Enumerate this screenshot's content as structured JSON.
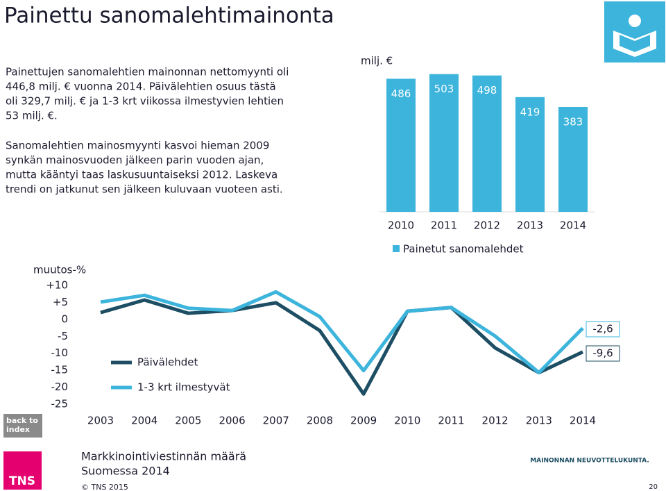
{
  "title": "Painettu sanomalehtimainonta",
  "paragraphs": [
    [
      "Painettujen sanomalehtien mainonnan nettomyynti oli",
      "446,8 milj. € vuonna 2014. Päivälehtien osuus tästä",
      "oli 329,7 milj. € ja 1-3 krt viikossa ilmestyvien lehtien",
      "53 milj. €."
    ],
    [
      "Sanomalehtien mainosmyynti kasvoi hieman 2009",
      "synkän mainosvuoden jälkeen parin vuoden ajan,",
      "mutta kääntyi taas laskusuuntaiseksi 2012. Laskeva",
      "trendi on jatkunut sen jälkeen kuluvaan vuoteen asti."
    ]
  ],
  "footer": {
    "back": [
      "back to",
      "index"
    ],
    "logo": "TNS",
    "report": [
      "Markkinointiviestinnän määrä",
      "Suomessa 2014"
    ],
    "copyright": "© TNS 2015",
    "partner": "MAINONNAN NEUVOTTELUKUNTA.",
    "page": "20"
  },
  "chart_data": [
    {
      "type": "bar",
      "y_label": "milj. €",
      "categories": [
        "2010",
        "2011",
        "2012",
        "2013",
        "2014"
      ],
      "series": [
        {
          "name": "Painetut sanomalehdet",
          "color": "#3cb4dc",
          "values": [
            486,
            503,
            498,
            419,
            383
          ]
        }
      ],
      "ylim": [
        0,
        520
      ],
      "legend": "bottom-left"
    },
    {
      "type": "line",
      "y_label": "muutos-%",
      "categories": [
        "2003",
        "2004",
        "2005",
        "2006",
        "2007",
        "2008",
        "2009",
        "2010",
        "2011",
        "2012",
        "2013",
        "2014"
      ],
      "series": [
        {
          "name": "Päivälehdet",
          "color": "#1d4e63",
          "values": [
            2,
            5.7,
            1.8,
            2.6,
            4.9,
            -3.3,
            -22,
            2.4,
            3.5,
            -8.4,
            -15.7,
            -9.6
          ],
          "value_labels": [
            null,
            null,
            null,
            null,
            null,
            null,
            null,
            null,
            null,
            null,
            null,
            "-9,6"
          ]
        },
        {
          "name": "1-3 krt ilmestyvät",
          "color": "#3cb4dc",
          "values": [
            5.1,
            7.1,
            3.3,
            2.6,
            8.1,
            0.8,
            -15.1,
            2.4,
            3.5,
            -4.9,
            -15.7,
            -2.6
          ],
          "value_labels": [
            null,
            null,
            null,
            null,
            null,
            null,
            null,
            null,
            null,
            null,
            null,
            "-2,6"
          ]
        }
      ],
      "ylim": [
        -25,
        10
      ],
      "yticks": [
        {
          "value": 10,
          "label": "+10"
        },
        {
          "value": 5,
          "label": "+5"
        },
        0,
        -5,
        -10,
        -15,
        -20,
        -25
      ],
      "legend": "inside-left"
    }
  ]
}
